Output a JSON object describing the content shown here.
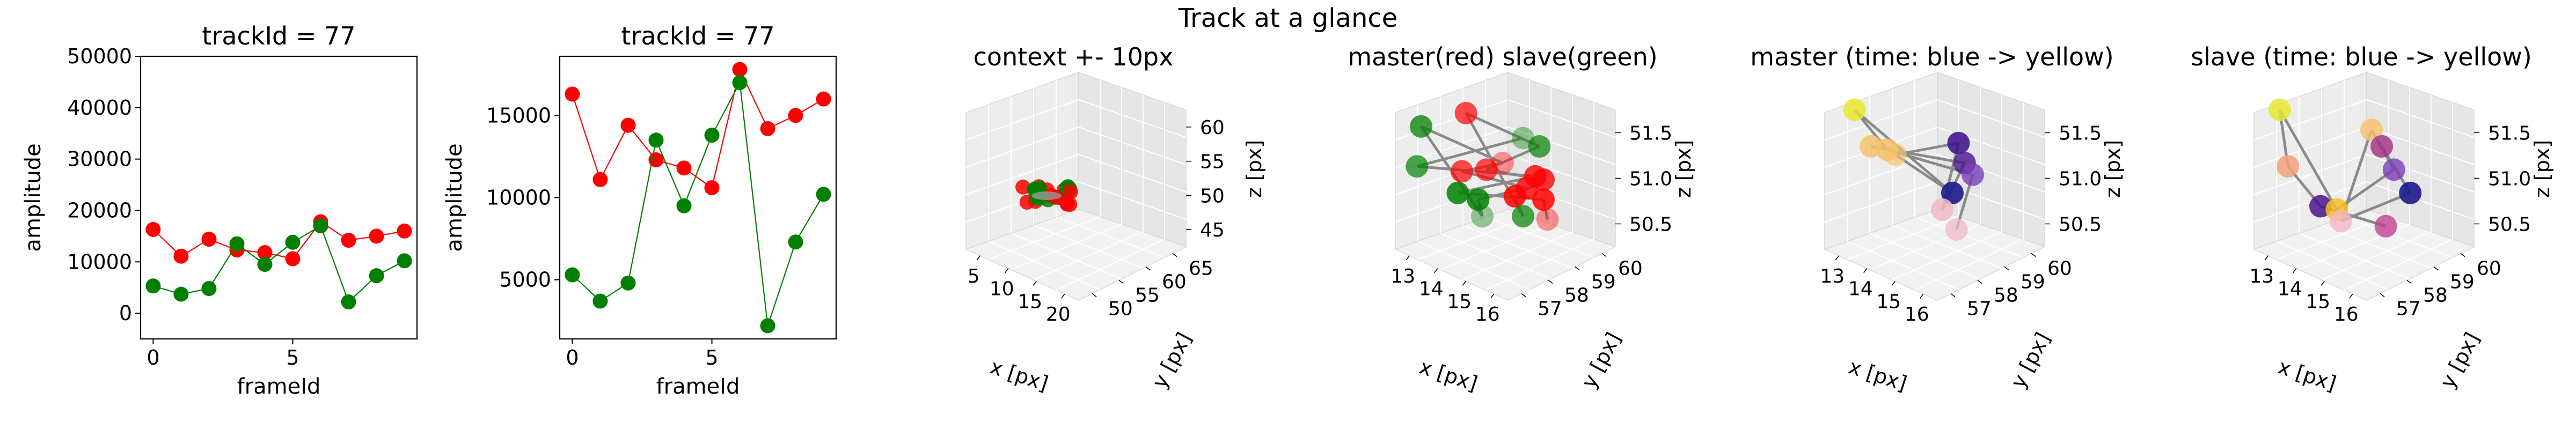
{
  "suptitle": "Track at a glance",
  "chart_data": [
    {
      "type": "line",
      "title": "trackId = 77",
      "xlabel": "frameId",
      "ylabel": "amplitude",
      "xlim": [
        -0.45,
        9.45
      ],
      "ylim": [
        -5000,
        50000
      ],
      "xticks": [
        0,
        5
      ],
      "yticks": [
        0,
        10000,
        20000,
        30000,
        40000,
        50000
      ],
      "x": [
        0,
        1,
        2,
        3,
        4,
        5,
        6,
        7,
        8,
        9
      ],
      "series": [
        {
          "color": "#ff0000",
          "values": [
            16300,
            11100,
            14400,
            12300,
            11800,
            10600,
            17800,
            14200,
            15000,
            16000
          ]
        },
        {
          "color": "#008000",
          "values": [
            5300,
            3700,
            4800,
            13500,
            9500,
            13800,
            17000,
            2200,
            7300,
            10200
          ]
        }
      ]
    },
    {
      "type": "line",
      "title": "trackId = 77",
      "xlabel": "frameId",
      "ylabel": "amplitude",
      "xlim": [
        -0.45,
        9.45
      ],
      "ylim": [
        1400,
        18600
      ],
      "xticks": [
        0,
        5
      ],
      "yticks": [
        5000,
        10000,
        15000
      ],
      "x": [
        0,
        1,
        2,
        3,
        4,
        5,
        6,
        7,
        8,
        9
      ],
      "series": [
        {
          "color": "#ff0000",
          "values": [
            16300,
            11100,
            14400,
            12300,
            11800,
            10600,
            17800,
            14200,
            15000,
            16000
          ]
        },
        {
          "color": "#008000",
          "values": [
            5300,
            3700,
            4800,
            13500,
            9500,
            13800,
            17000,
            2200,
            7300,
            10200
          ]
        }
      ]
    },
    {
      "type": "scatter3d",
      "title": "context +- 10px",
      "xlabel": "x [px]",
      "ylabel": "y [px]",
      "zlabel": "z [px]",
      "xticks": [
        "5",
        "10",
        "15",
        "20"
      ],
      "yticks": [
        "50",
        "55",
        "60",
        "65"
      ],
      "zticks": [
        "45",
        "50",
        "55",
        "60"
      ]
    },
    {
      "type": "scatter3d",
      "title": "master(red) slave(green)",
      "xlabel": "x [px]",
      "ylabel": "y [px]",
      "zlabel": "z [px]",
      "xticks": [
        "13",
        "14",
        "15",
        "16"
      ],
      "yticks": [
        "57",
        "58",
        "59",
        "60"
      ],
      "zticks": [
        "50.5",
        "51.0",
        "51.5"
      ]
    },
    {
      "type": "scatter3d",
      "title": "master (time: blue -> yellow)",
      "xlabel": "x [px]",
      "ylabel": "y [px]",
      "zlabel": "z [px]",
      "xticks": [
        "13",
        "14",
        "15",
        "16"
      ],
      "yticks": [
        "57",
        "58",
        "59",
        "60"
      ],
      "zticks": [
        "50.5",
        "51.0",
        "51.5"
      ]
    },
    {
      "type": "scatter3d",
      "title": "slave (time: blue -> yellow)",
      "xlabel": "x [px]",
      "ylabel": "y [px]",
      "zlabel": "z [px]",
      "xticks": [
        "13",
        "14",
        "15",
        "16"
      ],
      "yticks": [
        "57",
        "58",
        "59",
        "60"
      ],
      "zticks": [
        "50.5",
        "51.0",
        "51.5"
      ]
    }
  ]
}
